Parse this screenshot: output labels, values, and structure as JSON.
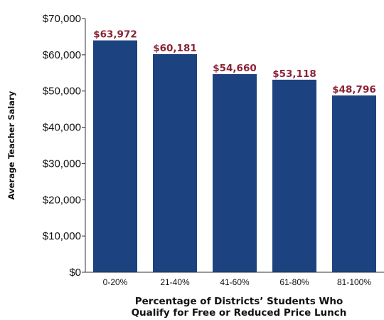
{
  "chart_data": {
    "type": "bar",
    "categories": [
      "0-20%",
      "21-40%",
      "41-60%",
      "61-80%",
      "81-100%"
    ],
    "values": [
      63972,
      60181,
      54660,
      53118,
      48796
    ],
    "data_labels": [
      "$63,972",
      "$60,181",
      "$54,660",
      "$53,118",
      "$48,796"
    ],
    "yticks": [
      0,
      10000,
      20000,
      30000,
      40000,
      50000,
      60000,
      70000
    ],
    "ytick_labels": [
      "$0",
      "$10,000",
      "$20,000",
      "$30,000",
      "$40,000",
      "$50,000",
      "$60,000",
      "$70,000"
    ],
    "ylim": [
      0,
      70000
    ],
    "ylabel": "Average Teacher Salary",
    "xlabel_line1": "Percentage of Districts’ Students Who",
    "xlabel_line2": "Qualify for Free or Reduced Price Lunch",
    "grid": false,
    "legend": "none",
    "bar_color": "#1c4380",
    "label_color": "#8b2335"
  }
}
